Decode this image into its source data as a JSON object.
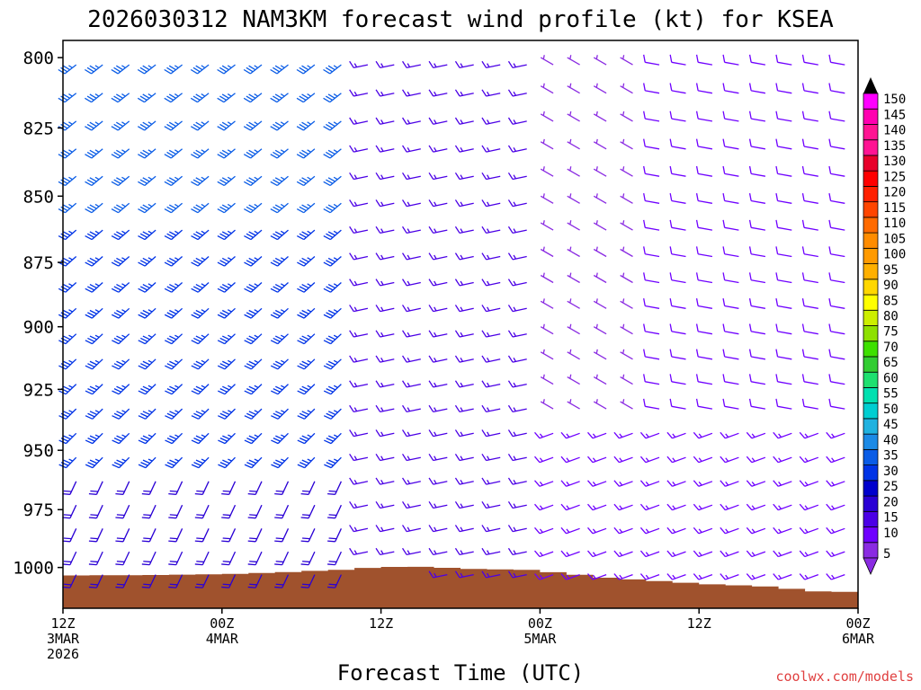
{
  "chart_data": {
    "type": "wind-barb-timeheight",
    "title": "2026030312 NAM3KM forecast wind profile (kt) for KSEA",
    "xlabel": "Forecast Time (UTC)",
    "ylabel": "",
    "watermark": "coolwx.com/models",
    "units": "kt",
    "x_range_hours": [
      0,
      60
    ],
    "ylim": [
      1018,
      794
    ],
    "x_ticks": [
      {
        "hour": 0,
        "line1": "12Z",
        "line2": "3MAR",
        "line3": "2026"
      },
      {
        "hour": 12,
        "line1": "00Z",
        "line2": "4MAR",
        "line3": ""
      },
      {
        "hour": 24,
        "line1": "12Z",
        "line2": "",
        "line3": ""
      },
      {
        "hour": 36,
        "line1": "00Z",
        "line2": "5MAR",
        "line3": ""
      },
      {
        "hour": 48,
        "line1": "12Z",
        "line2": "",
        "line3": ""
      },
      {
        "hour": 60,
        "line1": "00Z",
        "line2": "6MAR",
        "line3": ""
      }
    ],
    "y_ticks": [
      800,
      825,
      850,
      875,
      900,
      925,
      950,
      975,
      1000
    ],
    "barb_hours_step": 2,
    "barb_levels": [
      800,
      810,
      820,
      830,
      840,
      850,
      860,
      870,
      880,
      890,
      900,
      910,
      920,
      930,
      940,
      950,
      960,
      970,
      980,
      990,
      1000
    ],
    "surface_pressure": [
      {
        "hour": 0,
        "p": 1003.5
      },
      {
        "hour": 6,
        "p": 1003.3
      },
      {
        "hour": 12,
        "p": 1002.8
      },
      {
        "hour": 16,
        "p": 1002.0
      },
      {
        "hour": 20,
        "p": 1001.0
      },
      {
        "hour": 23,
        "p": 999.8
      },
      {
        "hour": 26,
        "p": 999.7
      },
      {
        "hour": 30,
        "p": 1000.6
      },
      {
        "hour": 34,
        "p": 1001.0
      },
      {
        "hour": 37,
        "p": 1002.6
      },
      {
        "hour": 40,
        "p": 1004.5
      },
      {
        "hour": 44,
        "p": 1006.0
      },
      {
        "hour": 48,
        "p": 1007.4
      },
      {
        "hour": 52,
        "p": 1008.3
      },
      {
        "hour": 56,
        "p": 1010.5
      },
      {
        "hour": 60,
        "p": 1011.0
      }
    ],
    "colorbar": {
      "values": [
        5,
        10,
        15,
        20,
        25,
        30,
        35,
        40,
        45,
        50,
        55,
        60,
        65,
        70,
        75,
        80,
        85,
        90,
        95,
        100,
        105,
        110,
        115,
        120,
        125,
        130,
        135,
        140,
        145,
        150
      ],
      "colors": [
        "#8a2be2",
        "#6f00ff",
        "#4b00e6",
        "#2a00d5",
        "#0000cd",
        "#0033e6",
        "#0a5ce6",
        "#1c8ae6",
        "#20b2e0",
        "#00ced1",
        "#00e0b0",
        "#1ee070",
        "#32cd32",
        "#3ee000",
        "#8ee000",
        "#ccee00",
        "#ffff00",
        "#ffd700",
        "#ffb000",
        "#ff9a00",
        "#ff8c00",
        "#ff6a00",
        "#ff4500",
        "#ff2000",
        "#ff0000",
        "#e8002a",
        "#ff1493",
        "#ff1493",
        "#ff00b0",
        "#ff00ff"
      ]
    },
    "wind_regimes": [
      {
        "hours": "0-22",
        "levels": "800-960",
        "direction_deg": 230,
        "speed_kt": 35
      },
      {
        "hours": "0-22",
        "levels": "960-1000",
        "direction_deg": 200,
        "speed_kt": 20
      },
      {
        "hours": "22-36",
        "levels": "800-1000",
        "direction_deg": 255,
        "speed_kt": 15
      },
      {
        "hours": "36-44",
        "levels": "800-940",
        "direction_deg": 300,
        "speed_kt": 7
      },
      {
        "hours": "44-60",
        "levels": "800-930",
        "direction_deg": 280,
        "speed_kt": 10
      },
      {
        "hours": "36-60",
        "levels": "940-1000",
        "direction_deg": 250,
        "speed_kt": 15
      }
    ]
  }
}
